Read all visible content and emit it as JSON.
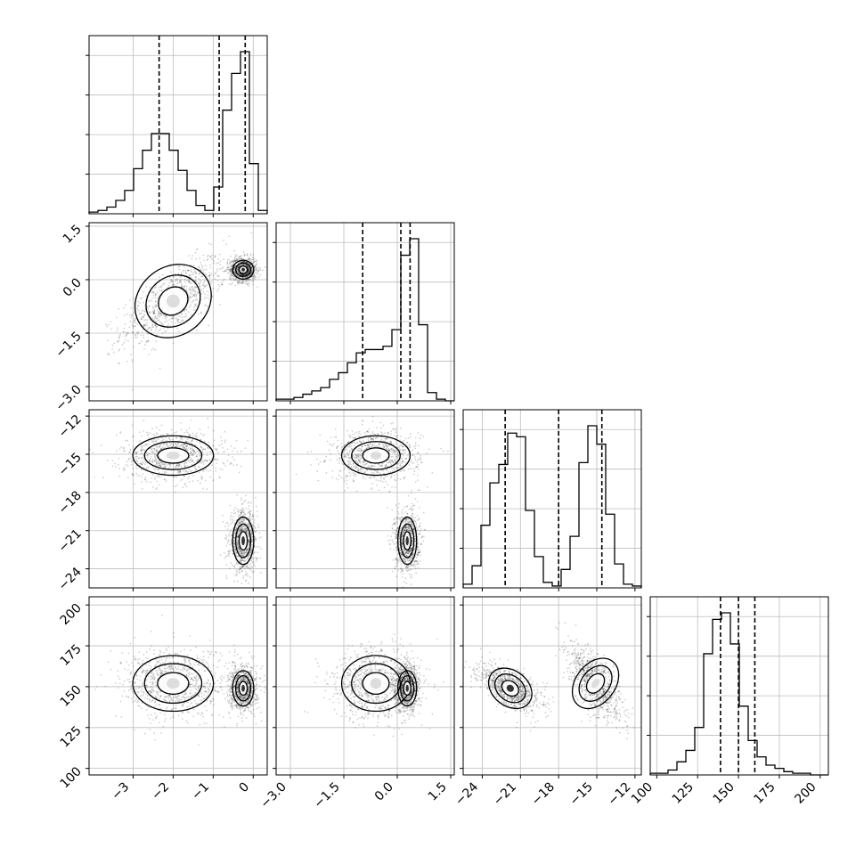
{
  "chart_data": {
    "type": "corner",
    "params": [
      {
        "range": [
          -4.1,
          0.35
        ],
        "ticks": [
          "−3",
          "−2",
          "−1",
          "0"
        ],
        "tick_values": [
          -3,
          -2,
          -1,
          0
        ],
        "quantiles": [
          -2.35,
          -0.85,
          -0.2
        ],
        "hist": [
          1,
          2,
          4,
          8,
          14,
          27,
          38,
          48,
          48,
          38,
          26,
          14,
          5,
          2,
          16,
          62,
          84,
          97,
          30,
          2
        ]
      },
      {
        "range": [
          -3.4,
          1.6
        ],
        "ticks": [
          "−3.0",
          "−1.5",
          "0.0",
          "1.5"
        ],
        "tick_values": [
          -3.0,
          -1.5,
          0.0,
          1.5
        ],
        "quantiles": [
          -0.97,
          0.1,
          0.36
        ],
        "hist": [
          1,
          1,
          2,
          4,
          6,
          8,
          13,
          17,
          23,
          29,
          31,
          31,
          33,
          43,
          88,
          98,
          46,
          5,
          1,
          0
        ]
      },
      {
        "range": [
          -25.5,
          -11.5
        ],
        "ticks": [
          "−24",
          "−21",
          "−18",
          "−15",
          "−12"
        ],
        "tick_values": [
          -24,
          -21,
          -18,
          -15,
          -12
        ],
        "quantiles": [
          -22.2,
          -18.0,
          -14.6
        ],
        "hist": [
          2,
          12,
          34,
          57,
          67,
          84,
          82,
          42,
          17,
          3,
          1,
          10,
          28,
          68,
          88,
          78,
          40,
          13,
          2,
          1
        ]
      },
      {
        "range": [
          96,
          205
        ],
        "ticks": [
          "100",
          "125",
          "150",
          "175",
          "200"
        ],
        "tick_values": [
          100,
          125,
          150,
          175,
          200
        ],
        "quantiles": [
          139,
          150,
          160
        ],
        "hist": [
          1,
          1,
          3,
          8,
          15,
          29,
          74,
          95,
          99,
          80,
          42,
          21,
          11,
          6,
          4,
          2,
          1,
          1,
          0,
          0
        ]
      }
    ],
    "clusters": [
      {
        "weight": 0.5,
        "mean": [
          -2.0,
          -0.6,
          -15.1,
          152
        ],
        "sd": [
          0.65,
          0.62,
          1.0,
          11
        ]
      },
      {
        "weight": 0.5,
        "mean": [
          -0.25,
          0.28,
          -21.8,
          149
        ],
        "sd": [
          0.17,
          0.17,
          1.2,
          7
        ]
      }
    ]
  }
}
